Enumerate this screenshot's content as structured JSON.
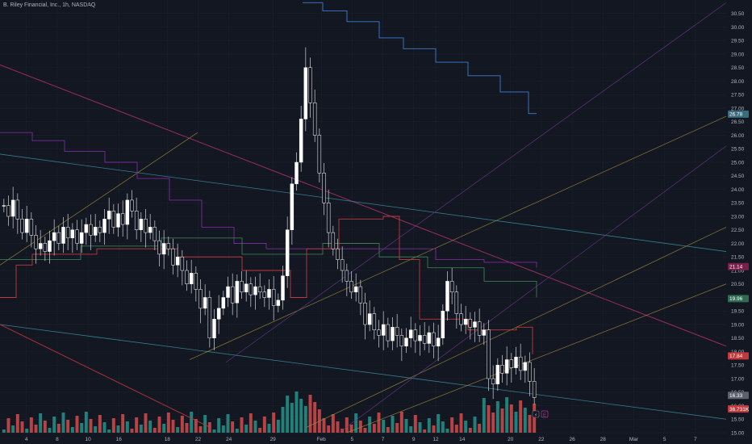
{
  "header": {
    "title": "B. Riley Financial, Inc., 1h, NASDAQ"
  },
  "colors": {
    "background": "#131722",
    "up": "#ffffff",
    "down": "#ffffff",
    "volume_up": "#26a69a",
    "volume_down": "#ef5350",
    "grid": "#1e222d",
    "text": "#b2b5be"
  },
  "chart_data": {
    "type": "candlestick",
    "ylim": [
      15.0,
      31.0
    ],
    "y_ticks": [
      "15.00",
      "15.50",
      "16.00",
      "16.50",
      "17.00",
      "17.50",
      "18.00",
      "18.50",
      "19.00",
      "19.50",
      "20.00",
      "20.50",
      "21.00",
      "21.50",
      "22.00",
      "22.50",
      "23.00",
      "23.50",
      "24.00",
      "24.50",
      "25.00",
      "25.50",
      "26.00",
      "26.50",
      "27.00",
      "27.50",
      "28.00",
      "28.50",
      "29.00",
      "29.50",
      "30.00",
      "30.50"
    ],
    "x_ticks": [
      {
        "label": "4",
        "t": 6
      },
      {
        "label": "8",
        "t": 13
      },
      {
        "label": "10",
        "t": 20
      },
      {
        "label": "16",
        "t": 27
      },
      {
        "label": "18",
        "t": 38
      },
      {
        "label": "22",
        "t": 45
      },
      {
        "label": "24",
        "t": 52
      },
      {
        "label": "29",
        "t": 62
      },
      {
        "label": "Feb",
        "t": 73
      },
      {
        "label": "5",
        "t": 80
      },
      {
        "label": "7",
        "t": 87
      },
      {
        "label": "9",
        "t": 94
      },
      {
        "label": "12",
        "t": 99
      },
      {
        "label": "14",
        "t": 105
      },
      {
        "label": "20",
        "t": 116
      },
      {
        "label": "22",
        "t": 123
      },
      {
        "label": "26",
        "t": 130
      },
      {
        "label": "28",
        "t": 137
      },
      {
        "label": "Mar",
        "t": 144
      },
      {
        "label": "5",
        "t": 151
      },
      {
        "label": "7",
        "t": 158
      }
    ],
    "x_range": [
      0,
      165
    ],
    "closes": [
      23.4,
      23.0,
      23.6,
      22.9,
      22.4,
      22.9,
      22.3,
      21.8,
      22.0,
      21.7,
      22.1,
      22.4,
      22.0,
      22.6,
      22.2,
      22.5,
      22.0,
      22.4,
      22.7,
      22.3,
      22.6,
      22.4,
      22.9,
      23.2,
      22.6,
      23.1,
      22.7,
      23.6,
      23.2,
      22.5,
      22.9,
      22.4,
      22.6,
      22.1,
      21.6,
      22.0,
      21.8,
      21.2,
      21.5,
      21.0,
      20.5,
      20.9,
      20.3,
      19.6,
      20.0,
      18.5,
      19.2,
      19.6,
      20.0,
      20.4,
      19.8,
      20.6,
      20.2,
      20.5,
      20.1,
      20.4,
      20.2,
      20.0,
      20.3,
      19.7,
      19.9,
      20.8,
      22.5,
      24.2,
      25.0,
      26.6,
      28.5,
      27.2,
      26.0,
      24.6,
      23.5,
      22.4,
      21.8,
      21.4,
      21.0,
      20.6,
      20.2,
      20.4,
      19.8,
      19.0,
      19.4,
      18.8,
      18.6,
      19.0,
      18.4,
      18.9,
      18.6,
      18.2,
      18.5,
      18.8,
      18.4,
      18.6,
      18.3,
      18.7,
      18.2,
      18.5,
      19.5,
      20.6,
      20.2,
      19.4,
      19.0,
      19.2,
      18.9,
      19.1,
      18.6,
      18.8,
      17.0,
      16.8,
      17.5,
      17.2,
      17.7,
      17.4,
      17.8,
      17.3,
      17.6,
      16.9,
      16.3
    ]
  },
  "badges": [
    {
      "value": "26.78",
      "price": 26.78,
      "color": "#3a6b7e"
    },
    {
      "value": "21.14",
      "price": 21.14,
      "color": "#7a1f4a"
    },
    {
      "value": "19.96",
      "price": 19.96,
      "color": "#2e6b52"
    },
    {
      "value": "17.84",
      "price": 17.84,
      "color": "#c0393e"
    },
    {
      "value": "16.33",
      "price": 16.38,
      "color": "#5d606b"
    },
    {
      "value": "36.731K",
      "price": 15.88,
      "color": "#c0393e"
    }
  ],
  "buttons": {
    "a": "⚡",
    "b": "E"
  }
}
